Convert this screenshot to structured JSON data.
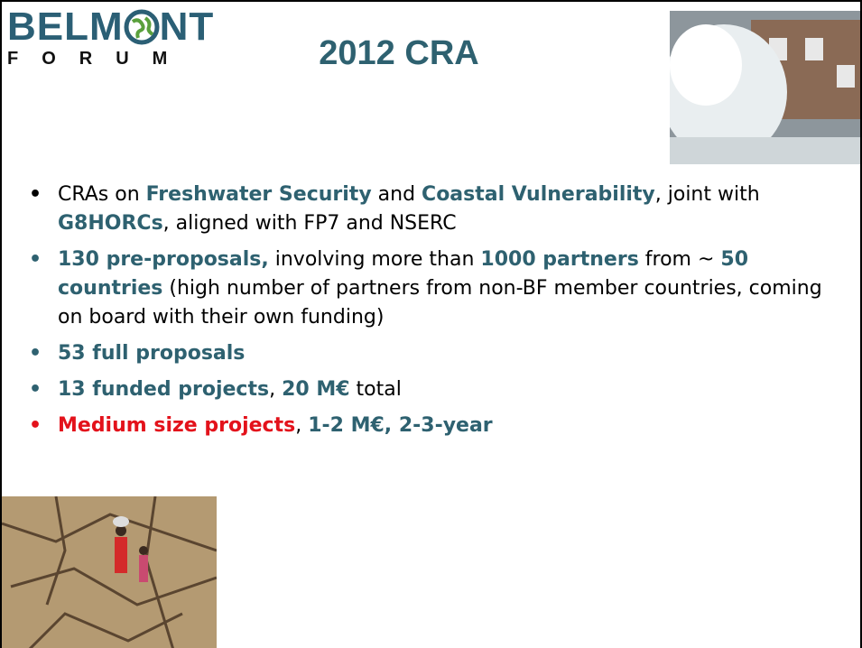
{
  "logo": {
    "left": "BELM",
    "right": "NT",
    "sub": "FORUM"
  },
  "title": "2012 CRA",
  "bullets": [
    {
      "bullet_color": "#000000",
      "runs": [
        {
          "text": "CRAs on ",
          "bold": false,
          "color": "#000000"
        },
        {
          "text": "Freshwater Security",
          "bold": true,
          "color": "#2e6170"
        },
        {
          "text": " and ",
          "bold": false,
          "color": "#000000"
        },
        {
          "text": "Coastal Vulnerability",
          "bold": true,
          "color": "#2e6170"
        },
        {
          "text": ", joint with ",
          "bold": false,
          "color": "#000000"
        },
        {
          "text": "G8HORCs",
          "bold": true,
          "color": "#2e6170"
        },
        {
          "text": ", aligned with FP7 and NSERC",
          "bold": false,
          "color": "#000000"
        }
      ]
    },
    {
      "bullet_color": "#2e6170",
      "runs": [
        {
          "text": "130 pre-proposals,",
          "bold": true,
          "color": "#2e6170"
        },
        {
          "text": " involving more than ",
          "bold": false,
          "color": "#000000"
        },
        {
          "text": "1000 partners",
          "bold": true,
          "color": "#2e6170"
        },
        {
          "text": " from ~ ",
          "bold": false,
          "color": "#000000"
        },
        {
          "text": "50 countries",
          "bold": true,
          "color": "#2e6170"
        },
        {
          "text": " (high number of partners from non-BF member countries, coming on board with their own funding)",
          "bold": false,
          "color": "#000000"
        }
      ]
    },
    {
      "bullet_color": "#2e6170",
      "runs": [
        {
          "text": "53 full proposals",
          "bold": true,
          "color": "#2e6170"
        }
      ]
    },
    {
      "bullet_color": "#2e6170",
      "runs": [
        {
          "text": "13 funded projects",
          "bold": true,
          "color": "#2e6170"
        },
        {
          "text": ", ",
          "bold": false,
          "color": "#000000"
        },
        {
          "text": "20 M€",
          "bold": true,
          "color": "#2e6170"
        },
        {
          "text": " total",
          "bold": false,
          "color": "#000000"
        }
      ]
    },
    {
      "bullet_color": "#e3121b",
      "runs": [
        {
          "text": "Medium size projects",
          "bold": true,
          "color": "#e3121b"
        },
        {
          "text": ", ",
          "bold": false,
          "color": "#000000"
        },
        {
          "text": "1-2 M€, 2-3-year",
          "bold": true,
          "color": "#2e6170"
        }
      ]
    }
  ]
}
